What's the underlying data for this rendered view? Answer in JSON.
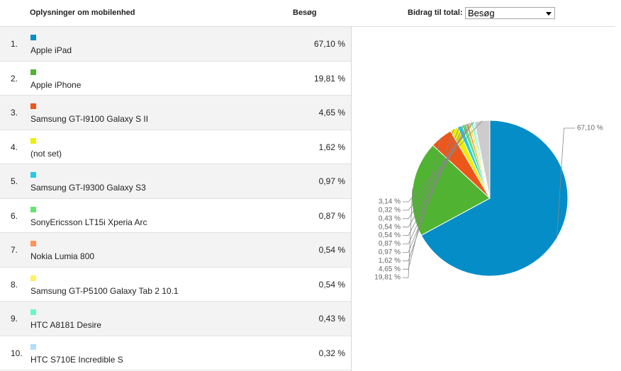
{
  "header": {
    "device_label": "Oplysninger om mobilenhed",
    "visits_label": "Besøg",
    "contribution_label": "Bidrag til total:",
    "contribution_select": "Besøg"
  },
  "rows": [
    {
      "rank": "1.",
      "name": "Apple iPad",
      "pct": "67,10 %",
      "color": "#058dc7"
    },
    {
      "rank": "2.",
      "name": "Apple iPhone",
      "pct": "19,81 %",
      "color": "#50b432"
    },
    {
      "rank": "3.",
      "name": "Samsung GT-I9100 Galaxy S II",
      "pct": "4,65 %",
      "color": "#ed561b"
    },
    {
      "rank": "4.",
      "name": "(not set)",
      "pct": "1,62 %",
      "color": "#edef00"
    },
    {
      "rank": "5.",
      "name": "Samsung GT-I9300 Galaxy S3",
      "pct": "0,97 %",
      "color": "#24cbe5"
    },
    {
      "rank": "6.",
      "name": "SonyEricsson LT15i Xperia Arc",
      "pct": "0,87 %",
      "color": "#64e572"
    },
    {
      "rank": "7.",
      "name": "Nokia Lumia 800",
      "pct": "0,54 %",
      "color": "#ff9655"
    },
    {
      "rank": "8.",
      "name": "Samsung GT-P5100 Galaxy Tab 2 10.1",
      "pct": "0,54 %",
      "color": "#fff263"
    },
    {
      "rank": "9.",
      "name": "HTC A8181 Desire",
      "pct": "0,43 %",
      "color": "#6af9c4"
    },
    {
      "rank": "10.",
      "name": "HTC S710E Incredible S",
      "pct": "0,32 %",
      "color": "#b2deff"
    }
  ],
  "chart_data": {
    "type": "pie",
    "slices": [
      {
        "name": "Apple iPad",
        "value": 67.1,
        "label": "67,10 %",
        "color": "#058dc7"
      },
      {
        "name": "Apple iPhone",
        "value": 19.81,
        "label": "19,81 %",
        "color": "#50b432"
      },
      {
        "name": "Samsung GT-I9100 Galaxy S II",
        "value": 4.65,
        "label": "4,65 %",
        "color": "#ed561b"
      },
      {
        "name": "(not set)",
        "value": 1.62,
        "label": "1,62 %",
        "color": "#edef00"
      },
      {
        "name": "Samsung GT-I9300 Galaxy S3",
        "value": 0.97,
        "label": "0,97 %",
        "color": "#24cbe5"
      },
      {
        "name": "SonyEricsson LT15i Xperia Arc",
        "value": 0.87,
        "label": "0,87 %",
        "color": "#64e572"
      },
      {
        "name": "Nokia Lumia 800",
        "value": 0.54,
        "label": "0,54 %",
        "color": "#ff9655"
      },
      {
        "name": "Samsung GT-P5100 Galaxy Tab 2 10.1",
        "value": 0.54,
        "label": "0,54 %",
        "color": "#fff263"
      },
      {
        "name": "HTC A8181 Desire",
        "value": 0.43,
        "label": "0,43 %",
        "color": "#6af9c4"
      },
      {
        "name": "HTC S710E Incredible S",
        "value": 0.32,
        "label": "0,32 %",
        "color": "#b2deff"
      },
      {
        "name": "",
        "value": 3.14,
        "label": "3,14 %",
        "color": "#cccccc"
      }
    ]
  }
}
